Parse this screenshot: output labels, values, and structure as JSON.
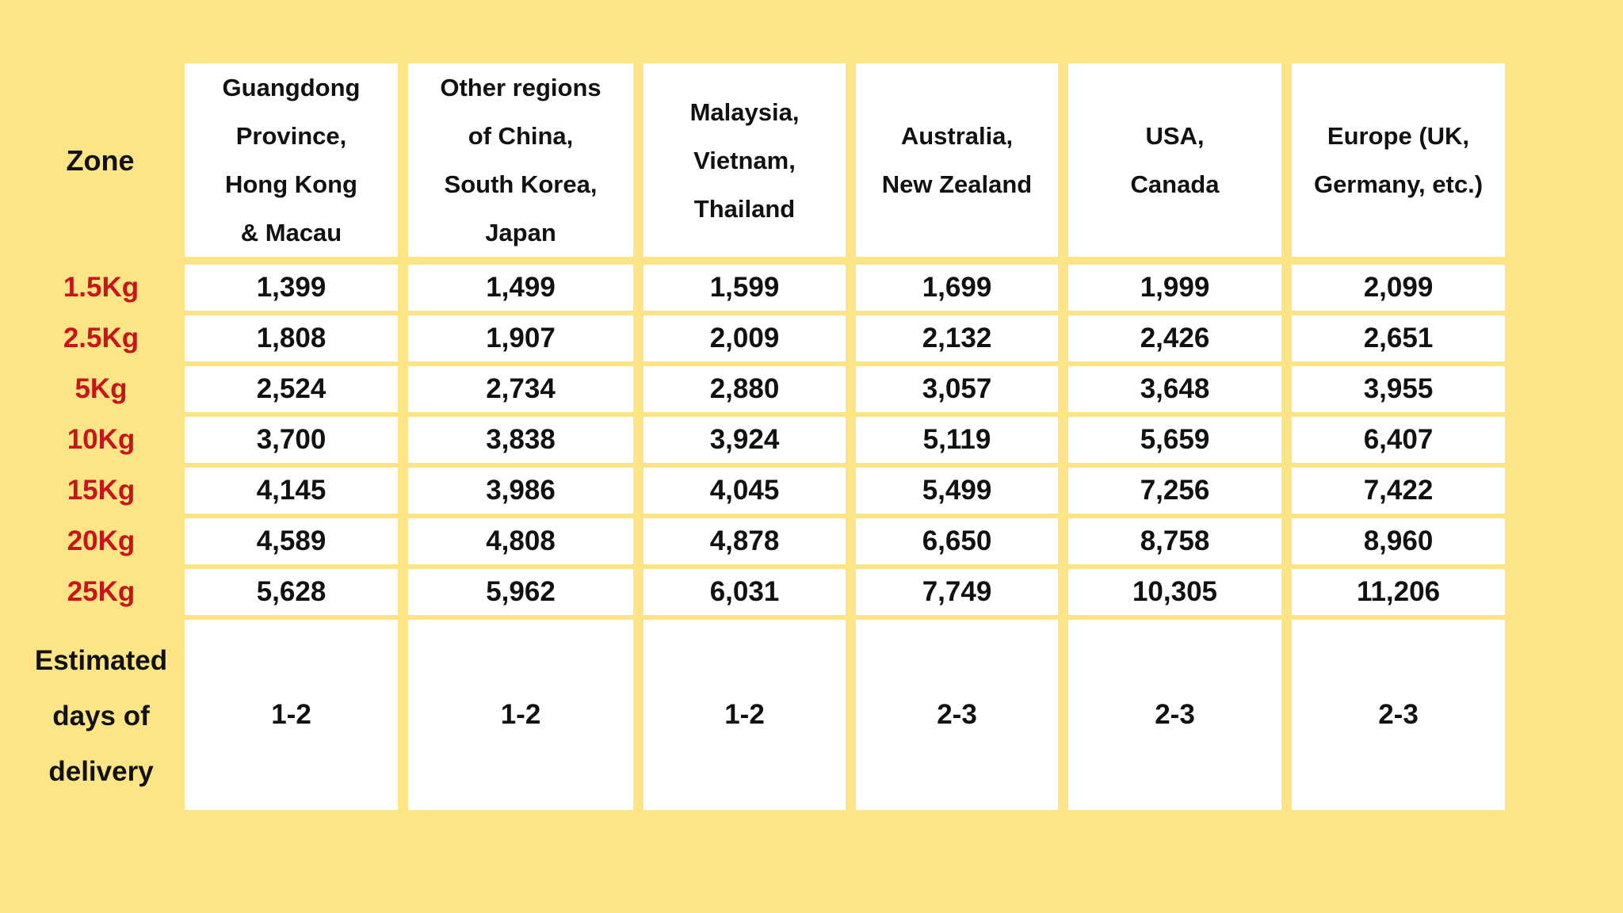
{
  "table": {
    "zone_label": "Zone",
    "estimated_label": "Estimated\ndays of\ndelivery",
    "columns": [
      "Guangdong\nProvince,\nHong Kong\n& Macau",
      "Other regions\nof China,\nSouth Korea,\nJapan",
      "Malaysia,\nVietnam,\nThailand",
      "Australia,\nNew Zealand",
      "USA,\nCanada",
      "Europe (UK,\nGermany, etc.)"
    ],
    "rows": [
      {
        "weight": "1.5Kg",
        "prices": [
          "1,399",
          "1,499",
          "1,599",
          "1,699",
          "1,999",
          "2,099"
        ]
      },
      {
        "weight": "2.5Kg",
        "prices": [
          "1,808",
          "1,907",
          "2,009",
          "2,132",
          "2,426",
          "2,651"
        ]
      },
      {
        "weight": "5Kg",
        "prices": [
          "2,524",
          "2,734",
          "2,880",
          "3,057",
          "3,648",
          "3,955"
        ]
      },
      {
        "weight": "10Kg",
        "prices": [
          "3,700",
          "3,838",
          "3,924",
          "5,119",
          "5,659",
          "6,407"
        ]
      },
      {
        "weight": "15Kg",
        "prices": [
          "4,145",
          "3,986",
          "4,045",
          "5,499",
          "7,256",
          "7,422"
        ]
      },
      {
        "weight": "20Kg",
        "prices": [
          "4,589",
          "4,808",
          "4,878",
          "6,650",
          "8,758",
          "8,960"
        ]
      },
      {
        "weight": "25Kg",
        "prices": [
          "5,628",
          "5,962",
          "6,031",
          "7,749",
          "10,305",
          "11,206"
        ]
      }
    ],
    "delivery_days": [
      "1-2",
      "1-2",
      "1-2",
      "2-3",
      "2-3",
      "2-3"
    ]
  },
  "colors": {
    "background": "#fde484",
    "cell_background": "#ffffff",
    "weight_text": "#c8141b",
    "text": "#111111"
  }
}
